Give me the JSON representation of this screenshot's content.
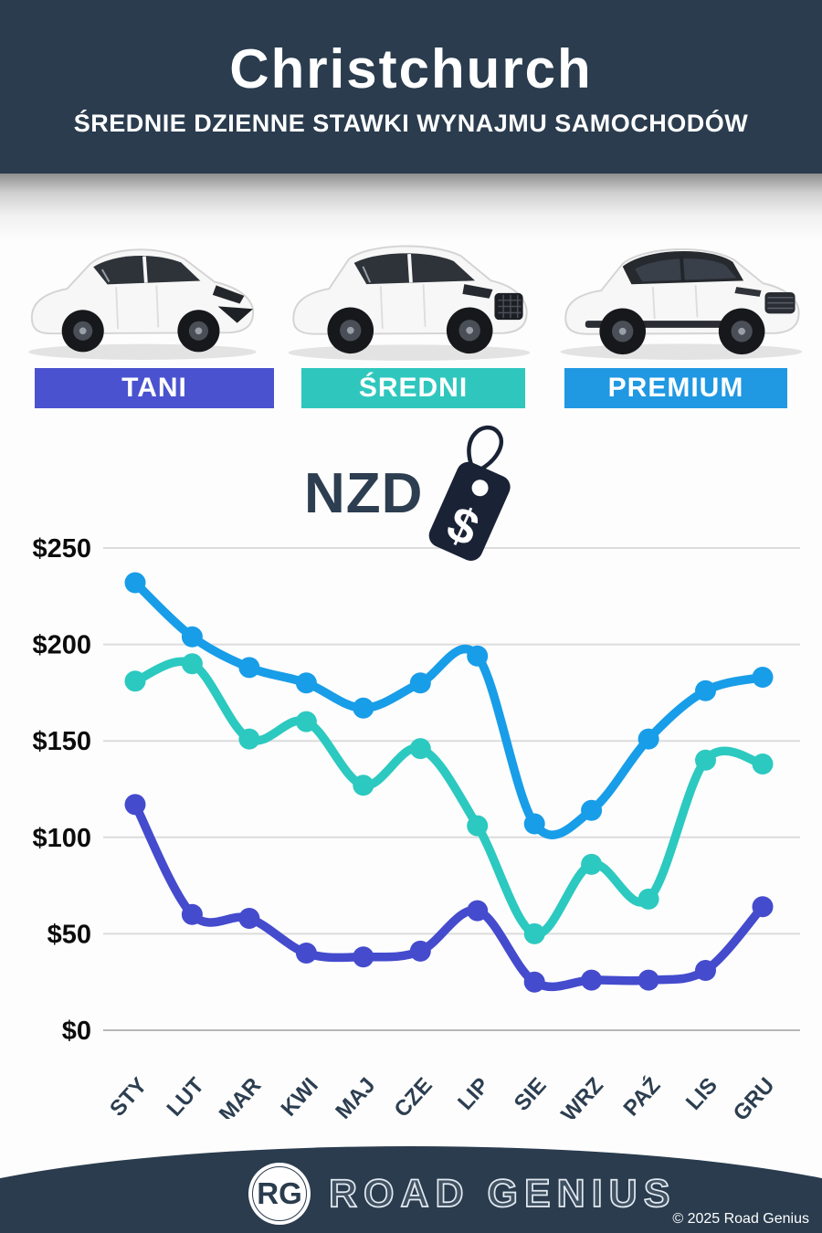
{
  "header": {
    "title": "Christchurch",
    "subtitle": "ŚREDNIE DZIENNE STAWKI WYNAJMU SAMOCHODÓW"
  },
  "categories": [
    {
      "label": "TANI",
      "color": "#4a52cf",
      "car": "hatchback-car"
    },
    {
      "label": "ŚREDNI",
      "color": "#2fc7bd",
      "car": "midsize-suv-car"
    },
    {
      "label": "PREMIUM",
      "color": "#2098e2",
      "car": "premium-suv-car"
    }
  ],
  "currency": {
    "label": "NZD",
    "tag_symbol": "$"
  },
  "chart_data": {
    "type": "line",
    "title": "",
    "currency": "NZD",
    "categories": [
      "STY",
      "LUT",
      "MAR",
      "KWI",
      "MAJ",
      "CZE",
      "LIP",
      "SIE",
      "WRZ",
      "PAŹ",
      "LIS",
      "GRU"
    ],
    "series": [
      {
        "name": "PREMIUM",
        "color": "#189de8",
        "values": [
          232,
          204,
          188,
          180,
          167,
          180,
          194,
          107,
          114,
          151,
          176,
          183
        ]
      },
      {
        "name": "ŚREDNI",
        "color": "#2cc9c0",
        "values": [
          181,
          190,
          151,
          160,
          127,
          146,
          106,
          50,
          86,
          68,
          140,
          138
        ]
      },
      {
        "name": "TANI",
        "color": "#444bcd",
        "values": [
          117,
          60,
          58,
          40,
          38,
          41,
          62,
          25,
          26,
          26,
          31,
          64
        ]
      }
    ],
    "y_ticks": [
      {
        "label": "$250",
        "value": 250
      },
      {
        "label": "$200",
        "value": 200
      },
      {
        "label": "$150",
        "value": 150
      },
      {
        "label": "$100",
        "value": 100
      },
      {
        "label": "$50",
        "value": 50
      },
      {
        "label": "$0",
        "value": 0
      }
    ],
    "ylim": [
      0,
      250
    ],
    "grid": true,
    "legend_position": "none"
  },
  "footer": {
    "logo_initials": "RG",
    "brand": "ROAD GENIUS",
    "copyright": "© 2025 Road Genius"
  }
}
